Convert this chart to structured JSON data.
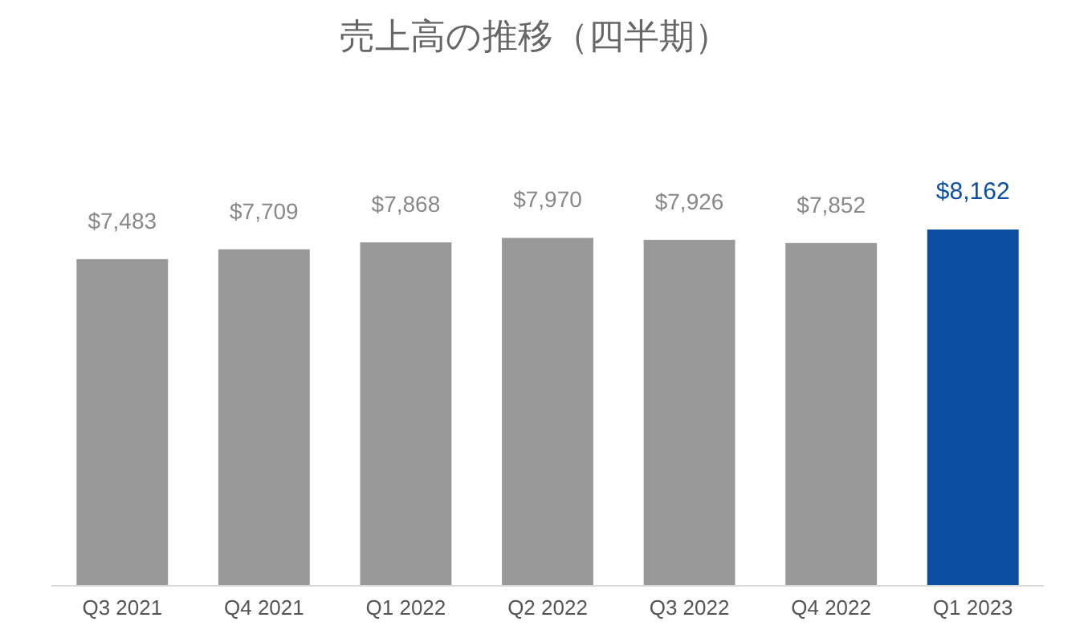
{
  "chart_data": {
    "type": "bar",
    "title": "売上高の推移（四半期）",
    "categories": [
      "Q3 2021",
      "Q4 2021",
      "Q1 2022",
      "Q2 2022",
      "Q3 2022",
      "Q4 2022",
      "Q1 2023"
    ],
    "values": [
      7483,
      7709,
      7868,
      7970,
      7926,
      7852,
      8162
    ],
    "colors": [
      "#999999",
      "#999999",
      "#999999",
      "#999999",
      "#999999",
      "#999999",
      "#0b4ea2"
    ],
    "value_labels": [
      "$7,483",
      "$7,709",
      "$7,868",
      "$7,970",
      "$7,926",
      "$7,852",
      "$8,162"
    ],
    "grid": false
  }
}
